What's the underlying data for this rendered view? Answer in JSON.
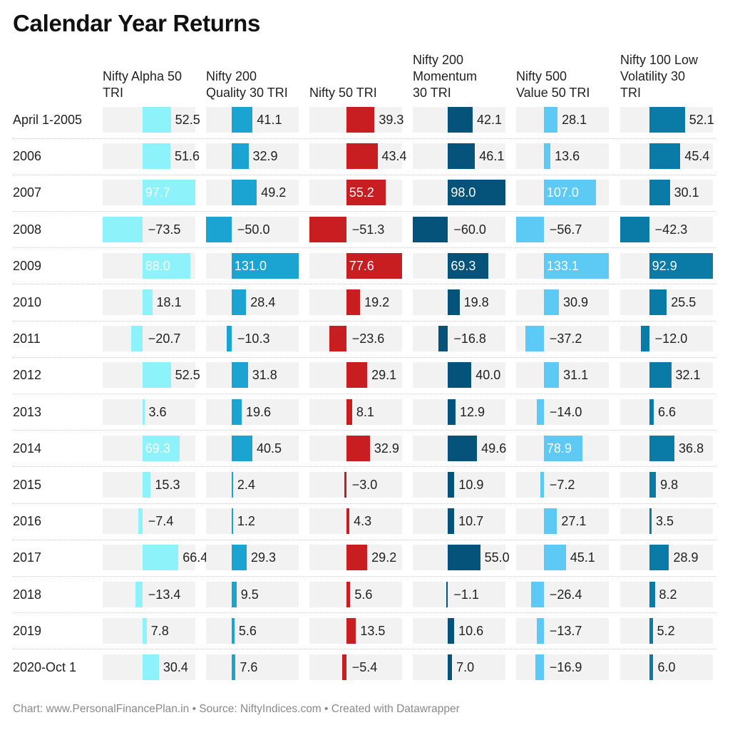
{
  "title": "Calendar Year Returns",
  "footer": "Chart: www.PersonalFinancePlan.in • Source: NiftyIndices.com • Created with Datawrapper",
  "chart_data": {
    "type": "bar",
    "title": "Calendar Year Returns",
    "categories": [
      "April 1-2005",
      "2006",
      "2007",
      "2008",
      "2009",
      "2010",
      "2011",
      "2012",
      "2013",
      "2014",
      "2015",
      "2016",
      "2017",
      "2018",
      "2019",
      "2020-Oct 1"
    ],
    "series": [
      {
        "name": "Nifty Alpha 50\nTRI",
        "color": "#8ef2fb",
        "values": [
          52.5,
          51.6,
          97.7,
          -73.5,
          88.0,
          18.1,
          -20.7,
          52.5,
          3.6,
          69.3,
          15.3,
          -7.4,
          66.4,
          -13.4,
          7.8,
          30.4
        ]
      },
      {
        "name": "Nifty 200\nQuality 30 TRI",
        "color": "#1ba3d1",
        "values": [
          41.1,
          32.9,
          49.2,
          -50.0,
          131.0,
          28.4,
          -10.3,
          31.8,
          19.6,
          40.5,
          2.4,
          1.2,
          29.3,
          9.5,
          5.6,
          7.6
        ]
      },
      {
        "name": "Nifty 50 TRI",
        "color": "#c81e22",
        "values": [
          39.3,
          43.4,
          55.2,
          -51.3,
          77.6,
          19.2,
          -23.6,
          29.1,
          8.1,
          32.9,
          -3.0,
          4.3,
          29.2,
          5.6,
          13.5,
          -5.4
        ]
      },
      {
        "name": "Nifty 200\nMomentum\n30 TRI",
        "color": "#05527a",
        "values": [
          42.1,
          46.1,
          98.0,
          -60.0,
          69.3,
          19.8,
          -16.8,
          40.0,
          12.9,
          49.6,
          10.9,
          10.7,
          55.0,
          -1.1,
          10.6,
          7.0
        ]
      },
      {
        "name": "Nifty 500\nValue 50 TRI",
        "color": "#5ccaf4",
        "values": [
          28.1,
          13.6,
          107.0,
          -56.7,
          133.1,
          30.9,
          -37.2,
          31.1,
          -14.0,
          78.9,
          -7.2,
          27.1,
          45.1,
          -26.4,
          -13.7,
          -16.9
        ]
      },
      {
        "name": "Nifty 100 Low\nVolatility 30\nTRI",
        "color": "#0a7aa6",
        "values": [
          52.1,
          45.4,
          30.1,
          -42.3,
          92.9,
          25.5,
          -12.0,
          32.1,
          6.6,
          36.8,
          9.8,
          3.5,
          28.9,
          8.2,
          5.2,
          6.0
        ]
      }
    ]
  }
}
